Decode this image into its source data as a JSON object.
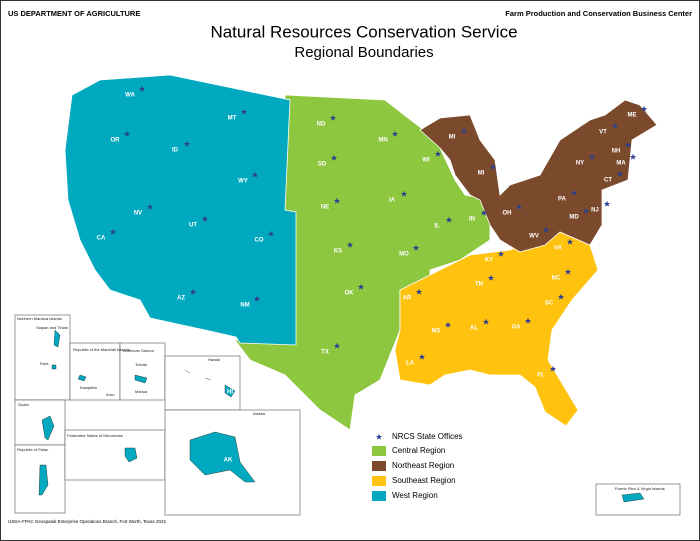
{
  "header": {
    "agency": "US DEPARTMENT OF AGRICULTURE",
    "center": "Farm Production and Conservation Business Center",
    "title": [
      "Natural Resources Conservation Service",
      "Regional Boundaries"
    ]
  },
  "legend": {
    "offices": "NRCS State Offices",
    "regions": [
      {
        "name": "Central Region",
        "color": "#8dc63f"
      },
      {
        "name": "Northeast Region",
        "color": "#7b4a2d"
      },
      {
        "name": "Southeast Region",
        "color": "#ffc20e"
      },
      {
        "name": "West Region",
        "color": "#00a9bf"
      }
    ]
  },
  "states": [
    "WA",
    "OR",
    "ID",
    "MT",
    "WY",
    "NV",
    "UT",
    "CO",
    "CA",
    "AZ",
    "NM",
    "ND",
    "SD",
    "NE",
    "KS",
    "OK",
    "TX",
    "MN",
    "IA",
    "MO",
    "WI",
    "IL",
    "MI",
    "MI",
    "IN",
    "OH",
    "KY",
    "TN",
    "AR",
    "MS",
    "AL",
    "GA",
    "SC",
    "NC",
    "VA",
    "WV",
    "PA",
    "NY",
    "VT",
    "NH",
    "ME",
    "MA",
    "CT",
    "NJ",
    "MD",
    "LA",
    "FL"
  ],
  "insets": {
    "nmi": "Northern Mariana Islands",
    "saipan": "Saipan and Tinian",
    "rota": "Rota",
    "marshall": "Republic of the Marshall Islands",
    "kwajalein": "Kwajalein",
    "arno": "Arno",
    "samoa": "American Samoa",
    "tutuila": "Tutuila",
    "manua": "Manua",
    "hawaii": "Hawaii",
    "hi": "HI",
    "guam": "Guam",
    "micronesia": "Federated States of Micronesia",
    "palau": "Republic of Palau",
    "alaska": "Alaska",
    "ak": "AK",
    "pr": "Puerto Rico & Virgin Islands"
  },
  "footer": "USDA-FPAC Geospatial Enterprise Operations Branch, Fort Worth, Texas 2021"
}
